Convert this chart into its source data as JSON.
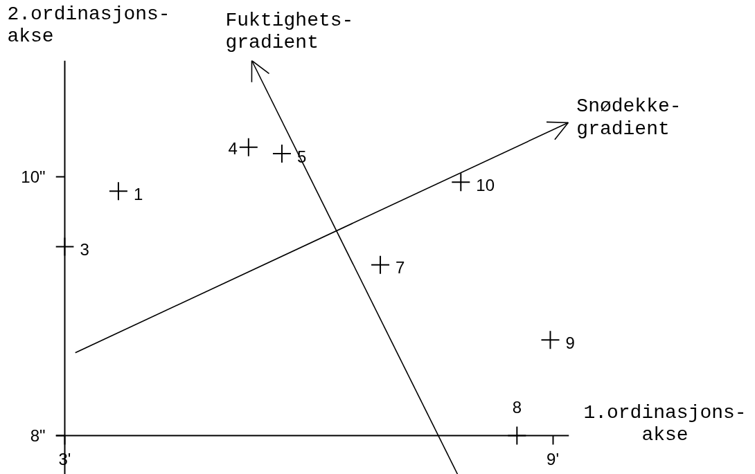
{
  "chart_data": {
    "type": "scatter",
    "xlabel": "1.ordinasjons-\nakse",
    "ylabel": "2.ordinasjons-\nakse",
    "xlim": [
      2.89,
      9.2
    ],
    "ylim": [
      7.7,
      10.9
    ],
    "xticks": [
      {
        "value": 3,
        "label": "3'"
      },
      {
        "value": 9,
        "label": "9'"
      }
    ],
    "yticks": [
      {
        "value": 8,
        "label": "8\""
      },
      {
        "value": 10,
        "label": "10\""
      }
    ],
    "series": [
      {
        "marker": "cross",
        "color": "#000000",
        "x": [
          3.66,
          3.0,
          5.26,
          5.67,
          6.88,
          8.56,
          8.97,
          7.87
        ],
        "values": [
          9.89,
          9.46,
          10.23,
          10.18,
          9.32,
          8.0,
          8.74,
          9.96
        ]
      },
      {
        "type": "line",
        "name": "Fuktighets-\ngradient",
        "color": "#000000",
        "x": [
          7.83,
          5.3
        ],
        "values": [
          7.7,
          10.9
        ]
      },
      {
        "type": "line",
        "name": "Snødekke-\ngradient",
        "color": "#000000",
        "x": [
          3.13,
          9.19
        ],
        "values": [
          8.64,
          10.42
        ]
      }
    ],
    "annotations": [
      {
        "text": "1",
        "x": 3.66,
        "y": 9.89
      },
      {
        "text": "3",
        "x": 3.0,
        "y": 9.46
      },
      {
        "text": "4",
        "x": 5.26,
        "y": 10.23
      },
      {
        "text": "5",
        "x": 5.67,
        "y": 10.18
      },
      {
        "text": "7",
        "x": 6.88,
        "y": 9.32
      },
      {
        "text": "8",
        "x": 8.56,
        "y": 8.0
      },
      {
        "text": "9",
        "x": 8.97,
        "y": 8.74
      },
      {
        "text": "10",
        "x": 7.87,
        "y": 9.96
      }
    ]
  }
}
